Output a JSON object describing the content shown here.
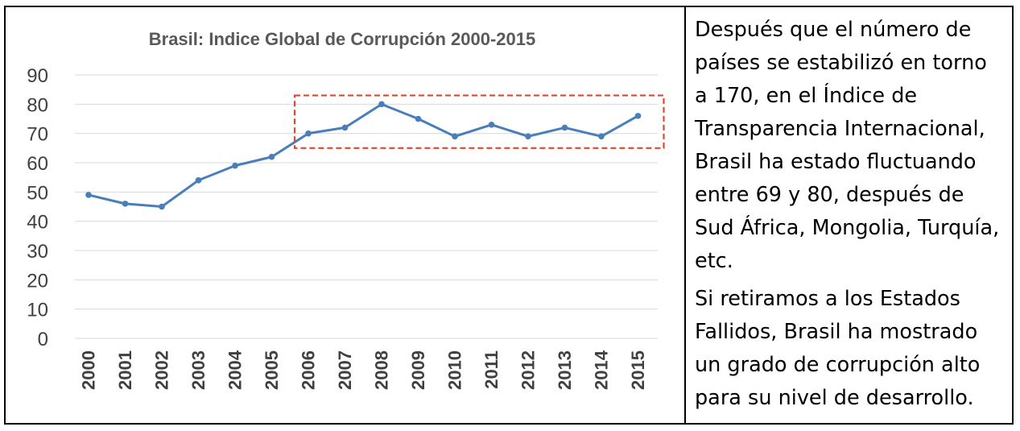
{
  "chart_data": {
    "type": "line",
    "title": "Brasil: Indice Global de Corrupción 2000-2015",
    "xlabel": "",
    "ylabel": "",
    "categories": [
      "2000",
      "2001",
      "2002",
      "2003",
      "2004",
      "2005",
      "2006",
      "2007",
      "2008",
      "2009",
      "2010",
      "2011",
      "2012",
      "2013",
      "2014",
      "2015"
    ],
    "series": [
      {
        "values": [
          49,
          46,
          45,
          54,
          59,
          62,
          70,
          72,
          80,
          75,
          69,
          73,
          69,
          72,
          69,
          76
        ]
      }
    ],
    "ylim": [
      0,
      90
    ],
    "yticks": [
      0,
      10,
      20,
      30,
      40,
      50,
      60,
      70,
      80,
      90
    ],
    "grid": true,
    "line_color": "#4a7ebb",
    "highlight_color": "#e0472e",
    "highlight_range": {
      "from": "2006",
      "to": "2015",
      "y": [
        65,
        83
      ]
    }
  },
  "note": {
    "paragraphs": [
      "Después que el número de países se estabilizó en torno a 170, en el Índice de Transparencia Internacional, Brasil ha estado fluctuando entre 69 y 80, después de Sud África, Mongolia, Turquía, etc.",
      "Si retiramos a los Estados Fallidos, Brasil ha mostrado un grado de corrupción alto para su nivel de desarrollo."
    ]
  }
}
